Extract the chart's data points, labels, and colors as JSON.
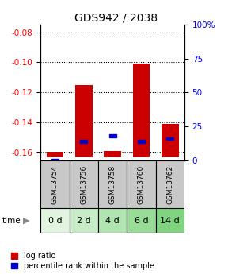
{
  "title": "GDS942 / 2038",
  "samples": [
    "GSM13754",
    "GSM13756",
    "GSM13758",
    "GSM13760",
    "GSM13762"
  ],
  "time_labels": [
    "0 d",
    "2 d",
    "4 d",
    "6 d",
    "14 d"
  ],
  "log_ratio_values": [
    -0.16,
    -0.115,
    -0.159,
    -0.101,
    -0.141
  ],
  "log_ratio_base": -0.163,
  "percentile_values": [
    0,
    14,
    18,
    14,
    16
  ],
  "ylim_left": [
    -0.165,
    -0.075
  ],
  "ylim_right": [
    0,
    100
  ],
  "yticks_left": [
    -0.16,
    -0.14,
    -0.12,
    -0.1,
    -0.08
  ],
  "yticks_right": [
    0,
    25,
    50,
    75,
    100
  ],
  "bar_color": "#cc0000",
  "percentile_color": "#0000cc",
  "background_color": "#ffffff",
  "title_fontsize": 10,
  "tick_fontsize": 7.5,
  "legend_fontsize": 7,
  "gsm_label_fontsize": 6.5,
  "time_fontsize": 8,
  "sample_bg_color": "#c8c8c8",
  "time_bg_colors": [
    "#e0f4e0",
    "#c8ecc8",
    "#b0e4b0",
    "#98dc98",
    "#80d480"
  ],
  "bar_width": 0.6
}
